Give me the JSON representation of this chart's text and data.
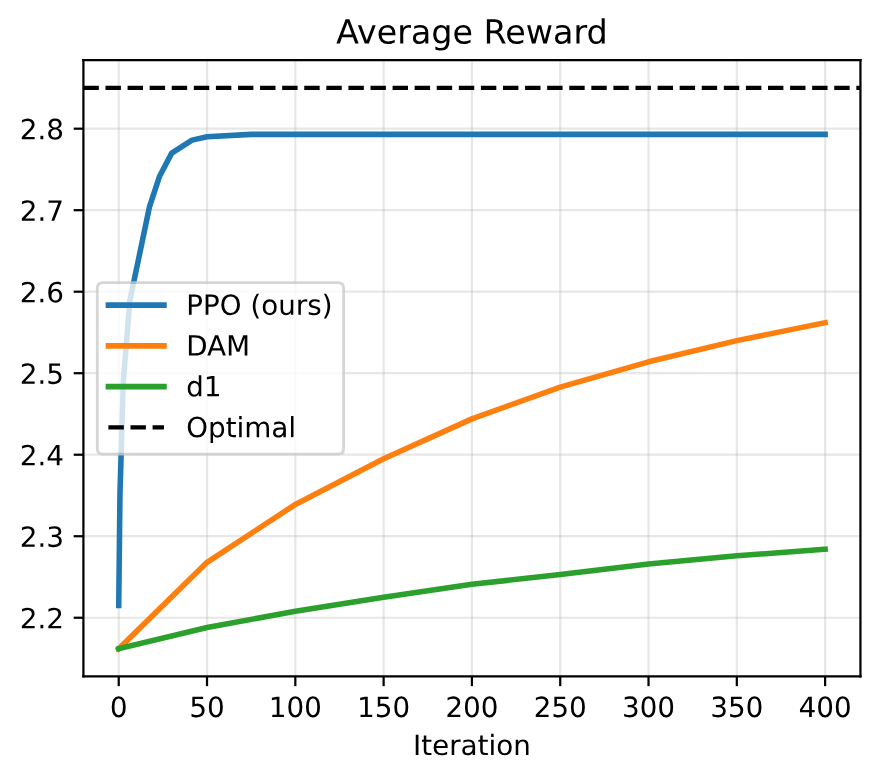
{
  "chart_data": {
    "type": "line",
    "title": "Average Reward",
    "xlabel": "Iteration",
    "xlim": [
      -20,
      420
    ],
    "xticks": [
      0,
      50,
      100,
      150,
      200,
      250,
      300,
      350,
      400
    ],
    "ylim": [
      2.128,
      2.884
    ],
    "yticks": [
      2.2,
      2.3,
      2.4,
      2.5,
      2.6,
      2.7,
      2.8
    ],
    "grid": true,
    "legend": "center left",
    "line_style": "solid",
    "marker": "none",
    "series": [
      {
        "name": "PPO (ours)",
        "color": "#1f77b4",
        "x": [
          0,
          0.7,
          2.6,
          6.3,
          11.9,
          17.4,
          23,
          30,
          41.5,
          50,
          75,
          100,
          200,
          300,
          400
        ],
        "values": [
          2.215,
          2.352,
          2.49,
          2.589,
          2.647,
          2.704,
          2.741,
          2.77,
          2.786,
          2.79,
          2.793,
          2.793,
          2.793,
          2.793,
          2.793
        ]
      },
      {
        "name": "DAM",
        "color": "#ff7f0e",
        "x": [
          0,
          50,
          100,
          150,
          200,
          250,
          300,
          350,
          400
        ],
        "values": [
          2.162,
          2.268,
          2.339,
          2.395,
          2.444,
          2.483,
          2.514,
          2.54,
          2.562
        ]
      },
      {
        "name": "d1",
        "color": "#2ca02c",
        "x": [
          0,
          50,
          100,
          150,
          200,
          250,
          300,
          350,
          400
        ],
        "values": [
          2.162,
          2.188,
          2.208,
          2.225,
          2.241,
          2.253,
          2.266,
          2.276,
          2.284
        ]
      }
    ],
    "ref_lines": [
      {
        "axis": "y",
        "value": 2.85,
        "label": "Optimal",
        "color": "#000000",
        "line_style": "dashed"
      }
    ]
  }
}
